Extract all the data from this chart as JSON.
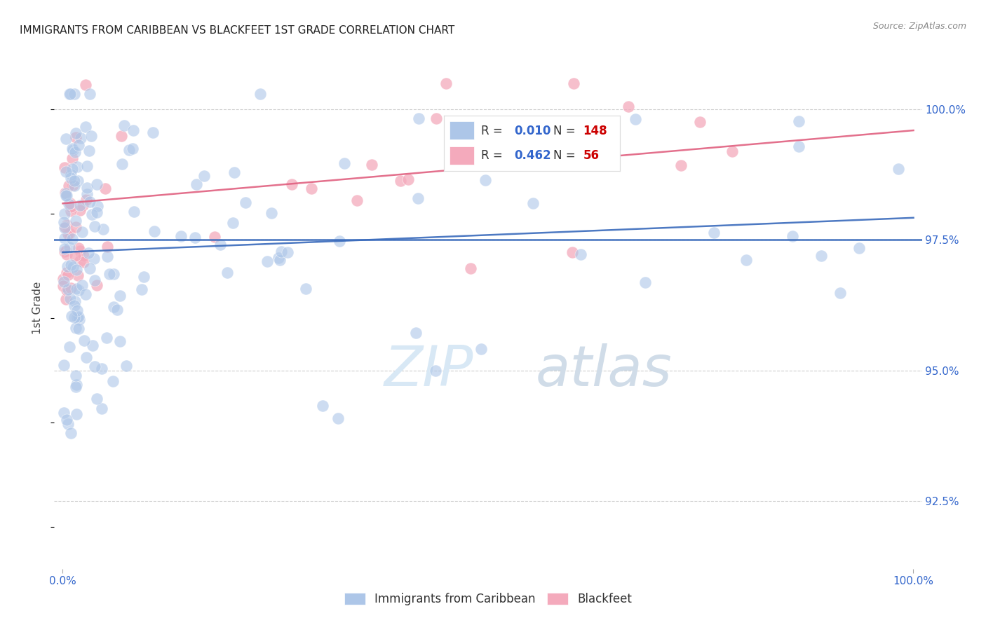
{
  "title": "IMMIGRANTS FROM CARIBBEAN VS BLACKFEET 1ST GRADE CORRELATION CHART",
  "source": "Source: ZipAtlas.com",
  "ylabel": "1st Grade",
  "legend_blue_label": "Immigrants from Caribbean",
  "legend_pink_label": "Blackfeet",
  "r_blue": 0.01,
  "n_blue": 148,
  "r_pink": 0.462,
  "n_pink": 56,
  "ymin": 91.2,
  "ymax": 101.2,
  "xmin": -1.0,
  "xmax": 101.0,
  "yticks": [
    92.5,
    95.0,
    97.5,
    100.0
  ],
  "blue_hline_y": 97.5,
  "blue_color": "#adc6e8",
  "pink_color": "#f4aabc",
  "trendline_blue_color": "#3a6bbc",
  "trendline_pink_color": "#e06080",
  "blue_r_color": "#3366cc",
  "pink_r_color": "#3366cc",
  "n_color": "#cc0000",
  "watermark_zip_color": "#d8e8f5",
  "watermark_atlas_color": "#d0dce8"
}
